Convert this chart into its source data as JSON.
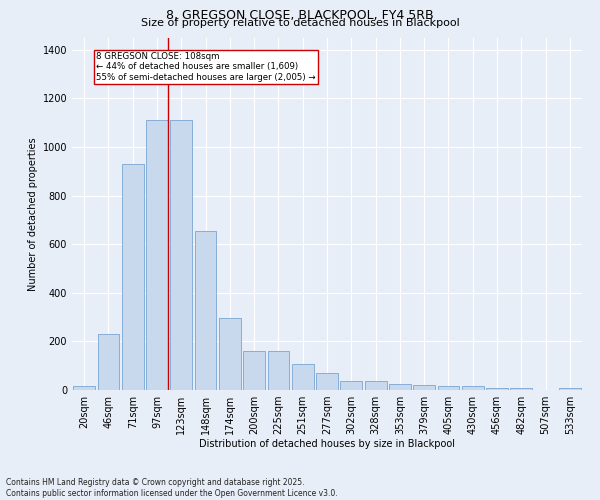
{
  "title1": "8, GREGSON CLOSE, BLACKPOOL, FY4 5RB",
  "title2": "Size of property relative to detached houses in Blackpool",
  "xlabel": "Distribution of detached houses by size in Blackpool",
  "ylabel": "Number of detached properties",
  "footer": "Contains HM Land Registry data © Crown copyright and database right 2025.\nContains public sector information licensed under the Open Government Licence v3.0.",
  "categories": [
    "20sqm",
    "46sqm",
    "71sqm",
    "97sqm",
    "123sqm",
    "148sqm",
    "174sqm",
    "200sqm",
    "225sqm",
    "251sqm",
    "277sqm",
    "302sqm",
    "328sqm",
    "353sqm",
    "379sqm",
    "405sqm",
    "430sqm",
    "456sqm",
    "482sqm",
    "507sqm",
    "533sqm"
  ],
  "values": [
    15,
    230,
    930,
    1110,
    1110,
    655,
    295,
    160,
    160,
    105,
    70,
    38,
    38,
    25,
    22,
    17,
    17,
    10,
    10,
    0,
    8
  ],
  "bar_color": "#c9d9ed",
  "bar_edge_color": "#6699cc",
  "annotation_box_text": "8 GREGSON CLOSE: 108sqm\n← 44% of detached houses are smaller (1,609)\n55% of semi-detached houses are larger (2,005) →",
  "vline_index": 3,
  "vline_color": "#cc0000",
  "annotation_box_color": "#cc0000",
  "ylim": [
    0,
    1450
  ],
  "background_color": "#e8eef7",
  "grid_color": "#ffffff",
  "title1_fontsize": 9,
  "title2_fontsize": 8,
  "axis_fontsize": 7,
  "ylabel_fontsize": 7,
  "xlabel_fontsize": 7,
  "footer_fontsize": 5.5
}
